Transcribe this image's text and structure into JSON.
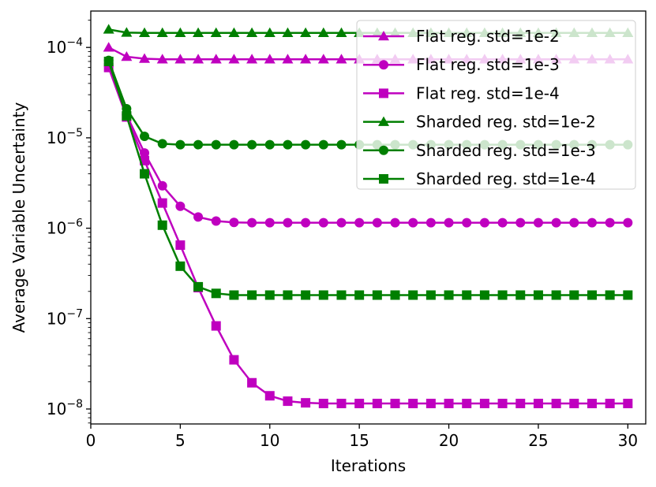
{
  "chart_data": {
    "type": "line",
    "title": "",
    "xlabel": "Iterations",
    "ylabel": "Average Variable Uncertainty",
    "xlim": [
      0,
      31
    ],
    "ylim_log10": [
      -8.0,
      -3.8
    ],
    "yscale": "log",
    "grid": false,
    "legend_position": "top-right",
    "x_ticks": [
      {
        "value": 0,
        "label": "0"
      },
      {
        "value": 5,
        "label": "5"
      },
      {
        "value": 10,
        "label": "10"
      },
      {
        "value": 15,
        "label": "15"
      },
      {
        "value": 20,
        "label": "20"
      },
      {
        "value": 25,
        "label": "25"
      },
      {
        "value": 30,
        "label": "30"
      }
    ],
    "y_ticks": [
      {
        "exp": -8,
        "base": "10",
        "power": "−8"
      },
      {
        "exp": -7,
        "base": "10",
        "power": "−7"
      },
      {
        "exp": -6,
        "base": "10",
        "power": "−6"
      },
      {
        "exp": -5,
        "base": "10",
        "power": "−5"
      },
      {
        "exp": -4,
        "base": "10",
        "power": "−4"
      }
    ],
    "x": [
      1,
      2,
      3,
      4,
      5,
      6,
      7,
      8,
      9,
      10,
      11,
      12,
      13,
      14,
      15,
      16,
      17,
      18,
      19,
      20,
      21,
      22,
      23,
      24,
      25,
      26,
      27,
      28,
      29,
      30
    ],
    "series": [
      {
        "name": "Flat reg. std=1e-2",
        "color": "#bf00bf",
        "marker": "triangle",
        "values": [
          0.0001,
          7.9e-05,
          7.5e-05,
          7.4e-05,
          7.4e-05,
          7.4e-05,
          7.4e-05,
          7.4e-05,
          7.4e-05,
          7.4e-05,
          7.4e-05,
          7.4e-05,
          7.4e-05,
          7.4e-05,
          7.4e-05,
          7.4e-05,
          7.4e-05,
          7.4e-05,
          7.4e-05,
          7.4e-05,
          7.4e-05,
          7.4e-05,
          7.4e-05,
          7.4e-05,
          7.4e-05,
          7.4e-05,
          7.4e-05,
          7.4e-05,
          7.4e-05,
          7.4e-05
        ]
      },
      {
        "name": "Flat reg. std=1e-3",
        "color": "#bf00bf",
        "marker": "circle",
        "values": [
          6.2e-05,
          1.8e-05,
          6.8e-06,
          2.95e-06,
          1.75e-06,
          1.33e-06,
          1.2e-06,
          1.16e-06,
          1.15e-06,
          1.15e-06,
          1.15e-06,
          1.15e-06,
          1.15e-06,
          1.15e-06,
          1.15e-06,
          1.15e-06,
          1.15e-06,
          1.15e-06,
          1.15e-06,
          1.15e-06,
          1.15e-06,
          1.15e-06,
          1.15e-06,
          1.15e-06,
          1.15e-06,
          1.15e-06,
          1.15e-06,
          1.15e-06,
          1.15e-06,
          1.15e-06
        ]
      },
      {
        "name": "Flat reg. std=1e-4",
        "color": "#bf00bf",
        "marker": "square",
        "values": [
          6e-05,
          1.7e-05,
          5.6e-06,
          1.9e-06,
          6.5e-07,
          2.2e-07,
          8.3e-08,
          3.5e-08,
          1.95e-08,
          1.4e-08,
          1.22e-08,
          1.17e-08,
          1.15e-08,
          1.15e-08,
          1.15e-08,
          1.15e-08,
          1.15e-08,
          1.15e-08,
          1.15e-08,
          1.15e-08,
          1.15e-08,
          1.15e-08,
          1.15e-08,
          1.15e-08,
          1.15e-08,
          1.15e-08,
          1.15e-08,
          1.15e-08,
          1.15e-08,
          1.15e-08
        ]
      },
      {
        "name": "Sharded reg. std=1e-2",
        "color": "#007f00",
        "marker": "triangle",
        "values": [
          0.000158,
          0.000146,
          0.000145,
          0.000145,
          0.000145,
          0.000145,
          0.000145,
          0.000145,
          0.000145,
          0.000145,
          0.000145,
          0.000145,
          0.000145,
          0.000145,
          0.000145,
          0.000145,
          0.000145,
          0.000145,
          0.000145,
          0.000145,
          0.000145,
          0.000145,
          0.000145,
          0.000145,
          0.000145,
          0.000145,
          0.000145,
          0.000145,
          0.000145,
          0.000145
        ]
      },
      {
        "name": "Sharded reg. std=1e-3",
        "color": "#007f00",
        "marker": "circle",
        "values": [
          7.2e-05,
          2.1e-05,
          1.04e-05,
          8.6e-06,
          8.4e-06,
          8.4e-06,
          8.4e-06,
          8.4e-06,
          8.4e-06,
          8.4e-06,
          8.4e-06,
          8.4e-06,
          8.4e-06,
          8.4e-06,
          8.4e-06,
          8.4e-06,
          8.4e-06,
          8.4e-06,
          8.4e-06,
          8.4e-06,
          8.4e-06,
          8.4e-06,
          8.4e-06,
          8.4e-06,
          8.4e-06,
          8.4e-06,
          8.4e-06,
          8.4e-06,
          8.4e-06,
          8.4e-06
        ]
      },
      {
        "name": "Sharded reg. std=1e-4",
        "color": "#007f00",
        "marker": "square",
        "values": [
          7e-05,
          1.75e-05,
          4e-06,
          1.08e-06,
          3.8e-07,
          2.25e-07,
          1.9e-07,
          1.82e-07,
          1.82e-07,
          1.82e-07,
          1.82e-07,
          1.82e-07,
          1.82e-07,
          1.82e-07,
          1.82e-07,
          1.82e-07,
          1.82e-07,
          1.82e-07,
          1.82e-07,
          1.82e-07,
          1.82e-07,
          1.82e-07,
          1.82e-07,
          1.82e-07,
          1.82e-07,
          1.82e-07,
          1.82e-07,
          1.82e-07,
          1.82e-07,
          1.82e-07
        ]
      }
    ]
  }
}
